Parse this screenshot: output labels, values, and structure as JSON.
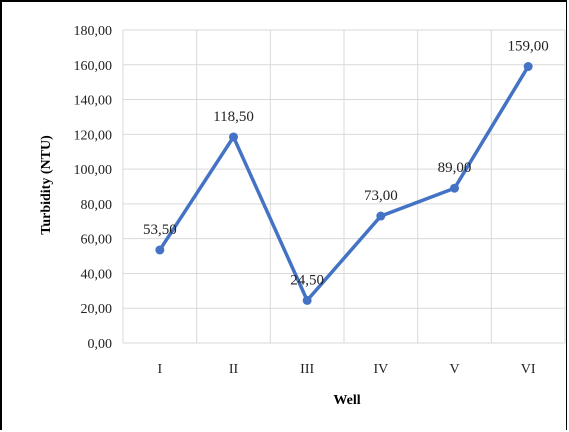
{
  "chart_data": {
    "type": "line",
    "title": "",
    "xlabel": "Well",
    "ylabel": "Turbidity (NTU)",
    "categories": [
      "I",
      "II",
      "III",
      "IV",
      "V",
      "VI"
    ],
    "series": [
      {
        "values": [
          53.5,
          118.5,
          24.5,
          73.0,
          89.0,
          159.0
        ],
        "labels": [
          "53,50",
          "118,50",
          "24,50",
          "73,00",
          "89,00",
          "159,00"
        ],
        "color": "#4472c4"
      }
    ],
    "ylim": [
      0,
      180
    ],
    "yticks": [
      "0,00",
      "20,00",
      "40,00",
      "60,00",
      "80,00",
      "100,00",
      "120,00",
      "140,00",
      "160,00",
      "180,00"
    ],
    "grid": true,
    "legend": "none"
  }
}
